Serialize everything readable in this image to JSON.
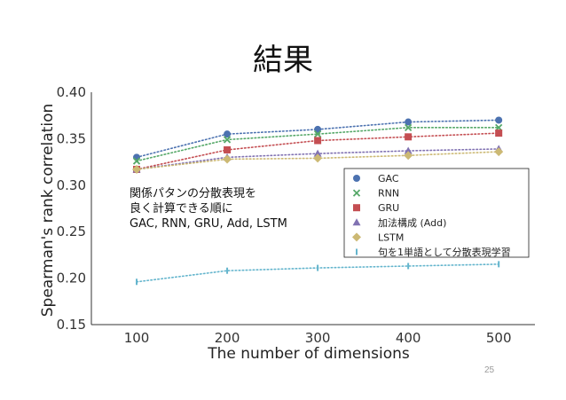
{
  "slide": {
    "title": "結果",
    "page_number": "25"
  },
  "chart_data": {
    "type": "line",
    "xlabel": "The number of dimensions",
    "ylabel": "Spearman's rank correlation",
    "xlim": [
      50,
      540
    ],
    "ylim": [
      0.15,
      0.4
    ],
    "x": [
      100,
      200,
      300,
      400,
      500
    ],
    "x_ticks": [
      100,
      200,
      300,
      400,
      500
    ],
    "y_ticks": [
      0.15,
      0.2,
      0.25,
      0.3,
      0.35,
      0.4
    ],
    "x_tick_labels": [
      "100",
      "200",
      "300",
      "400",
      "500"
    ],
    "y_tick_labels": [
      "0.15",
      "0.20",
      "0.25",
      "0.30",
      "0.35",
      "0.40"
    ],
    "line_style": "dotted",
    "legend_placement": "right",
    "series": [
      {
        "name": "GAC",
        "marker": "circle",
        "color": "#4c72b0",
        "values": [
          0.33,
          0.355,
          0.36,
          0.368,
          0.37
        ]
      },
      {
        "name": "RNN",
        "marker": "x",
        "color": "#55a868",
        "values": [
          0.326,
          0.349,
          0.355,
          0.362,
          0.362
        ]
      },
      {
        "name": "GRU",
        "marker": "square",
        "color": "#c44e52",
        "values": [
          0.317,
          0.338,
          0.348,
          0.352,
          0.356
        ]
      },
      {
        "name": "加法構成 (Add)",
        "marker": "triangle",
        "color": "#8172b2",
        "values": [
          0.317,
          0.33,
          0.334,
          0.337,
          0.339
        ]
      },
      {
        "name": "LSTM",
        "marker": "diamond",
        "color": "#ccb974",
        "values": [
          0.317,
          0.328,
          0.329,
          0.332,
          0.336
        ]
      },
      {
        "name": "句を1単語として分散表現学習",
        "marker": "vline",
        "color": "#64b5cd",
        "values": [
          0.196,
          0.208,
          0.211,
          0.213,
          0.215
        ]
      }
    ],
    "annotation": [
      "関係パタンの分散表現を",
      "良く計算できる順に",
      "GAC, RNN, GRU, Add, LSTM"
    ]
  }
}
